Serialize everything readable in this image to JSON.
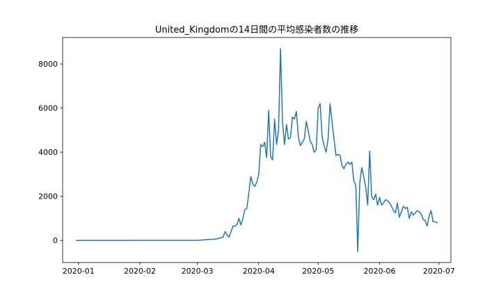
{
  "chart_data": {
    "type": "line",
    "title": "United_Kingdomの14日間の平均感染者数の推移",
    "xlabel": "",
    "ylabel": "",
    "x_start": "2019-12-31",
    "x_end": "2020-06-30",
    "xlim": [
      "2019-12-24",
      "2020-07-07"
    ],
    "ylim": [
      -1000,
      9200
    ],
    "grid": false,
    "legend": null,
    "xticks": [
      {
        "date": "2020-01-01",
        "label": "2020-01"
      },
      {
        "date": "2020-02-01",
        "label": "2020-02"
      },
      {
        "date": "2020-03-01",
        "label": "2020-03"
      },
      {
        "date": "2020-04-01",
        "label": "2020-04"
      },
      {
        "date": "2020-05-01",
        "label": "2020-05"
      },
      {
        "date": "2020-06-01",
        "label": "2020-06"
      },
      {
        "date": "2020-07-01",
        "label": "2020-07"
      }
    ],
    "yticks": [
      {
        "value": 0,
        "label": "0"
      },
      {
        "value": 2000,
        "label": "2000"
      },
      {
        "value": 4000,
        "label": "4000"
      },
      {
        "value": 6000,
        "label": "6000"
      },
      {
        "value": 8000,
        "label": "8000"
      }
    ],
    "series": [
      {
        "name": "United_Kingdom",
        "color": "#1f77b4",
        "points": [
          [
            "2019-12-31",
            0
          ],
          [
            "2020-01-15",
            0
          ],
          [
            "2020-01-31",
            2
          ],
          [
            "2020-02-15",
            2
          ],
          [
            "2020-02-28",
            5
          ],
          [
            "2020-03-01",
            5
          ],
          [
            "2020-03-03",
            15
          ],
          [
            "2020-03-05",
            30
          ],
          [
            "2020-03-07",
            50
          ],
          [
            "2020-03-09",
            50
          ],
          [
            "2020-03-11",
            75
          ],
          [
            "2020-03-13",
            130
          ],
          [
            "2020-03-14",
            150
          ],
          [
            "2020-03-15",
            400
          ],
          [
            "2020-03-16",
            260
          ],
          [
            "2020-03-17",
            150
          ],
          [
            "2020-03-18",
            400
          ],
          [
            "2020-03-19",
            650
          ],
          [
            "2020-03-20",
            650
          ],
          [
            "2020-03-21",
            720
          ],
          [
            "2020-03-22",
            1000
          ],
          [
            "2020-03-23",
            700
          ],
          [
            "2020-03-24",
            1000
          ],
          [
            "2020-03-25",
            1400
          ],
          [
            "2020-03-26",
            1450
          ],
          [
            "2020-03-27",
            2150
          ],
          [
            "2020-03-28",
            2900
          ],
          [
            "2020-03-29",
            2550
          ],
          [
            "2020-03-30",
            2450
          ],
          [
            "2020-03-31",
            2650
          ],
          [
            "2020-04-01",
            3000
          ],
          [
            "2020-04-02",
            4350
          ],
          [
            "2020-04-03",
            4250
          ],
          [
            "2020-04-04",
            4450
          ],
          [
            "2020-04-05",
            3750
          ],
          [
            "2020-04-06",
            5900
          ],
          [
            "2020-04-07",
            3800
          ],
          [
            "2020-04-08",
            3650
          ],
          [
            "2020-04-09",
            5500
          ],
          [
            "2020-04-10",
            4350
          ],
          [
            "2020-04-11",
            5000
          ],
          [
            "2020-04-12",
            8700
          ],
          [
            "2020-04-13",
            5350
          ],
          [
            "2020-04-14",
            4350
          ],
          [
            "2020-04-15",
            5250
          ],
          [
            "2020-04-16",
            4600
          ],
          [
            "2020-04-17",
            4650
          ],
          [
            "2020-04-18",
            5600
          ],
          [
            "2020-04-19",
            5500
          ],
          [
            "2020-04-20",
            5850
          ],
          [
            "2020-04-21",
            4700
          ],
          [
            "2020-04-22",
            4300
          ],
          [
            "2020-04-23",
            4450
          ],
          [
            "2020-04-24",
            4600
          ],
          [
            "2020-04-25",
            5400
          ],
          [
            "2020-04-26",
            4950
          ],
          [
            "2020-04-27",
            4500
          ],
          [
            "2020-04-28",
            4350
          ],
          [
            "2020-04-29",
            4000
          ],
          [
            "2020-04-30",
            4100
          ],
          [
            "2020-05-01",
            6000
          ],
          [
            "2020-05-02",
            6200
          ],
          [
            "2020-05-03",
            4700
          ],
          [
            "2020-05-04",
            4300
          ],
          [
            "2020-05-05",
            4000
          ],
          [
            "2020-05-06",
            4600
          ],
          [
            "2020-05-07",
            6200
          ],
          [
            "2020-05-08",
            5400
          ],
          [
            "2020-05-09",
            4600
          ],
          [
            "2020-05-10",
            3850
          ],
          [
            "2020-05-11",
            3900
          ],
          [
            "2020-05-12",
            3850
          ],
          [
            "2020-05-13",
            3400
          ],
          [
            "2020-05-14",
            3250
          ],
          [
            "2020-05-15",
            3450
          ],
          [
            "2020-05-16",
            3550
          ],
          [
            "2020-05-17",
            3450
          ],
          [
            "2020-05-18",
            3550
          ],
          [
            "2020-05-19",
            2700
          ],
          [
            "2020-05-20",
            2500
          ],
          [
            "2020-05-21",
            -500
          ],
          [
            "2020-05-22",
            2600
          ],
          [
            "2020-05-23",
            3300
          ],
          [
            "2020-05-24",
            2900
          ],
          [
            "2020-05-25",
            2400
          ],
          [
            "2020-05-26",
            1600
          ],
          [
            "2020-05-27",
            4050
          ],
          [
            "2020-05-28",
            2000
          ],
          [
            "2020-05-29",
            1850
          ],
          [
            "2020-05-30",
            2100
          ],
          [
            "2020-05-31",
            1600
          ],
          [
            "2020-06-01",
            1950
          ],
          [
            "2020-06-02",
            1600
          ],
          [
            "2020-06-03",
            1700
          ],
          [
            "2020-06-04",
            1850
          ],
          [
            "2020-06-05",
            1800
          ],
          [
            "2020-06-06",
            1700
          ],
          [
            "2020-06-07",
            1550
          ],
          [
            "2020-06-08",
            1350
          ],
          [
            "2020-06-09",
            1250
          ],
          [
            "2020-06-10",
            1700
          ],
          [
            "2020-06-11",
            1050
          ],
          [
            "2020-06-12",
            1300
          ],
          [
            "2020-06-13",
            1550
          ],
          [
            "2020-06-14",
            1450
          ],
          [
            "2020-06-15",
            1500
          ],
          [
            "2020-06-16",
            1000
          ],
          [
            "2020-06-17",
            1300
          ],
          [
            "2020-06-18",
            1150
          ],
          [
            "2020-06-19",
            1250
          ],
          [
            "2020-06-20",
            1350
          ],
          [
            "2020-06-21",
            1300
          ],
          [
            "2020-06-22",
            1200
          ],
          [
            "2020-06-23",
            950
          ],
          [
            "2020-06-24",
            900
          ],
          [
            "2020-06-25",
            650
          ],
          [
            "2020-06-26",
            1100
          ],
          [
            "2020-06-27",
            1350
          ],
          [
            "2020-06-28",
            850
          ],
          [
            "2020-06-29",
            850
          ],
          [
            "2020-06-30",
            800
          ]
        ]
      }
    ]
  }
}
